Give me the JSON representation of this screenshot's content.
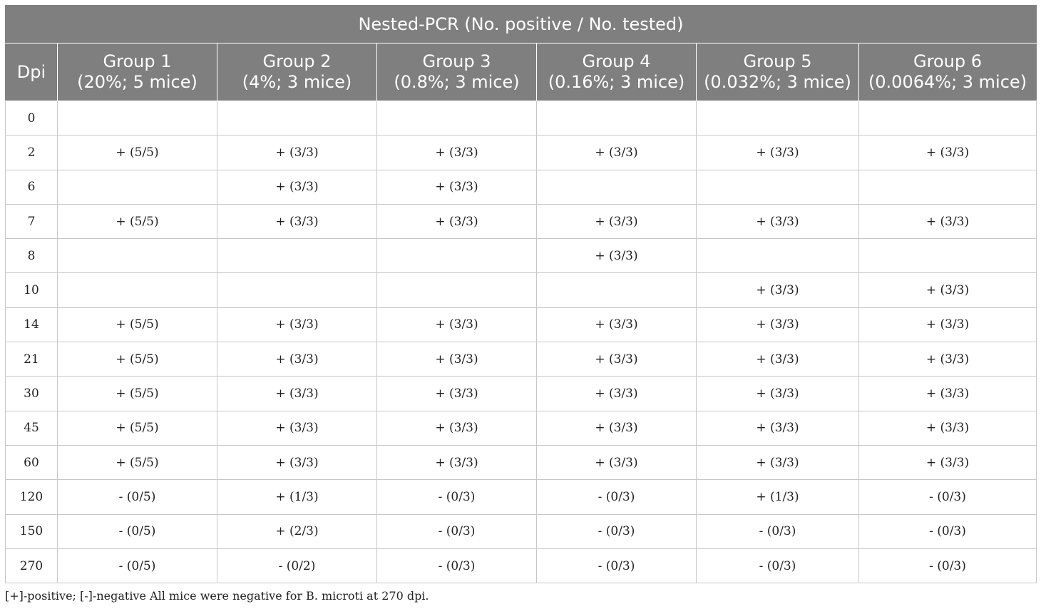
{
  "table": {
    "caption": "Nested-PCR (No. positive / No. tested)",
    "dpi_header": "Dpi",
    "groups": [
      {
        "name": "Group 1",
        "desc": "(20%; 5 mice)"
      },
      {
        "name": "Group 2",
        "desc": "(4%; 3 mice)"
      },
      {
        "name": "Group 3",
        "desc": "(0.8%; 3 mice)"
      },
      {
        "name": "Group 4",
        "desc": "(0.16%; 3 mice)"
      },
      {
        "name": "Group 5",
        "desc": "(0.032%; 3 mice)"
      },
      {
        "name": "Group 6",
        "desc": "(0.0064%; 3 mice)"
      }
    ],
    "rows": [
      {
        "dpi": "0",
        "cells": [
          "",
          "",
          "",
          "",
          "",
          ""
        ]
      },
      {
        "dpi": "2",
        "cells": [
          "+ (5/5)",
          "+ (3/3)",
          "+ (3/3)",
          "+ (3/3)",
          "+ (3/3)",
          "+ (3/3)"
        ]
      },
      {
        "dpi": "6",
        "cells": [
          "",
          "+ (3/3)",
          "+ (3/3)",
          "",
          "",
          ""
        ]
      },
      {
        "dpi": "7",
        "cells": [
          "+ (5/5)",
          "+ (3/3)",
          "+ (3/3)",
          "+ (3/3)",
          "+ (3/3)",
          "+ (3/3)"
        ]
      },
      {
        "dpi": "8",
        "cells": [
          "",
          "",
          "",
          "+ (3/3)",
          "",
          ""
        ]
      },
      {
        "dpi": "10",
        "cells": [
          "",
          "",
          "",
          "",
          "+ (3/3)",
          "+ (3/3)"
        ]
      },
      {
        "dpi": "14",
        "cells": [
          "+ (5/5)",
          "+ (3/3)",
          "+ (3/3)",
          "+ (3/3)",
          "+ (3/3)",
          "+ (3/3)"
        ]
      },
      {
        "dpi": "21",
        "cells": [
          "+ (5/5)",
          "+ (3/3)",
          "+ (3/3)",
          "+ (3/3)",
          "+ (3/3)",
          "+ (3/3)"
        ]
      },
      {
        "dpi": "30",
        "cells": [
          "+ (5/5)",
          "+ (3/3)",
          "+ (3/3)",
          "+ (3/3)",
          "+ (3/3)",
          "+ (3/3)"
        ]
      },
      {
        "dpi": "45",
        "cells": [
          "+ (5/5)",
          "+ (3/3)",
          "+ (3/3)",
          "+ (3/3)",
          "+ (3/3)",
          "+ (3/3)"
        ]
      },
      {
        "dpi": "60",
        "cells": [
          "+ (5/5)",
          "+ (3/3)",
          "+ (3/3)",
          "+ (3/3)",
          "+ (3/3)",
          "+ (3/3)"
        ]
      },
      {
        "dpi": "120",
        "cells": [
          "- (0/5)",
          "+ (1/3)",
          "- (0/3)",
          "- (0/3)",
          "+ (1/3)",
          "- (0/3)"
        ]
      },
      {
        "dpi": "150",
        "cells": [
          "- (0/5)",
          "+ (2/3)",
          "- (0/3)",
          "- (0/3)",
          "- (0/3)",
          "- (0/3)"
        ]
      },
      {
        "dpi": "270",
        "cells": [
          "- (0/5)",
          "- (0/2)",
          "- (0/3)",
          "- (0/3)",
          "- (0/3)",
          "- (0/3)"
        ]
      }
    ]
  },
  "footnote": "[+]-positive; [-]-negative All mice were negative for B. microti at 270 dpi.",
  "colors": {
    "header_bg": "#7f7f7f",
    "header_text": "#ffffff",
    "grid_line": "#c8c8c8"
  }
}
